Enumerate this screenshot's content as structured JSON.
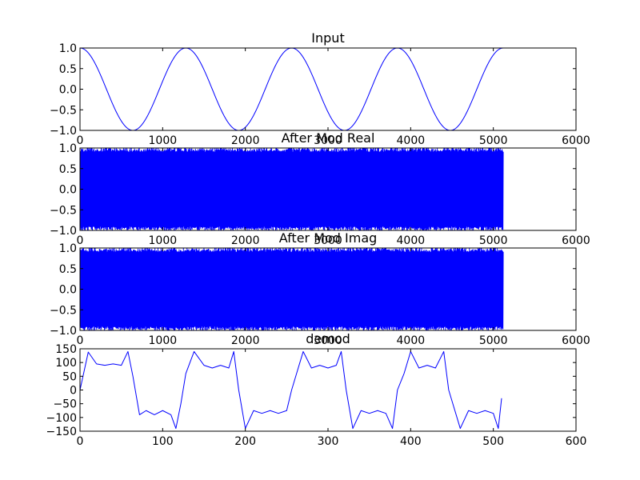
{
  "colors": {
    "line": "#0000ff",
    "axes": "#000000",
    "background": "#ffffff"
  },
  "chart_data": [
    {
      "type": "line",
      "title": "Input",
      "xlim": [
        0,
        6000
      ],
      "ylim": [
        -1.0,
        1.0
      ],
      "xticks": [
        0,
        1000,
        2000,
        3000,
        4000,
        5000,
        6000
      ],
      "yticks": [
        -1.0,
        -0.5,
        0.0,
        0.5,
        1.0
      ],
      "xtick_labels": [
        "0",
        "1000",
        "2000",
        "3000",
        "4000",
        "5000",
        "6000"
      ],
      "ytick_labels": [
        "−1.0",
        "−0.5",
        "0.0",
        "0.5",
        "1.0"
      ],
      "grid": false,
      "series": [
        {
          "x": [
            0,
            320,
            640,
            960,
            1280,
            1600,
            1920,
            2240,
            2560,
            2880,
            3200,
            3520,
            3840,
            4160,
            4480,
            4800,
            5120
          ],
          "y": [
            1.0,
            0.0,
            -1.0,
            0.0,
            1.0,
            0.0,
            -1.0,
            0.0,
            1.0,
            0.0,
            -1.0,
            0.0,
            1.0,
            0.0,
            -1.0,
            0.0,
            1.0
          ],
          "shape": "cosine",
          "period": 1280
        }
      ]
    },
    {
      "type": "line",
      "title": "After Mod Real",
      "xlim": [
        0,
        6000
      ],
      "ylim": [
        -1.0,
        1.0
      ],
      "xticks": [
        0,
        1000,
        2000,
        3000,
        4000,
        5000,
        6000
      ],
      "yticks": [
        -1.0,
        -0.5,
        0.0,
        0.5,
        1.0
      ],
      "xtick_labels": [
        "0",
        "1000",
        "2000",
        "3000",
        "4000",
        "5000",
        "6000"
      ],
      "ytick_labels": [
        "−1.0",
        "−0.5",
        "0.0",
        "0.5",
        "1.0"
      ],
      "grid": false,
      "series": [
        {
          "x_range": [
            0,
            5120
          ],
          "y_range": [
            -1.0,
            1.0
          ],
          "shape": "dense-oscillation"
        }
      ]
    },
    {
      "type": "line",
      "title": "After Mod Imag",
      "xlim": [
        0,
        6000
      ],
      "ylim": [
        -1.0,
        1.0
      ],
      "xticks": [
        0,
        1000,
        2000,
        3000,
        4000,
        5000,
        6000
      ],
      "yticks": [
        -1.0,
        -0.5,
        0.0,
        0.5,
        1.0
      ],
      "xtick_labels": [
        "0",
        "1000",
        "2000",
        "3000",
        "4000",
        "5000",
        "6000"
      ],
      "ytick_labels": [
        "−1.0",
        "−0.5",
        "0.0",
        "0.5",
        "1.0"
      ],
      "grid": false,
      "series": [
        {
          "x_range": [
            0,
            5120
          ],
          "y_range": [
            -1.0,
            1.0
          ],
          "shape": "dense-oscillation"
        }
      ]
    },
    {
      "type": "line",
      "title": "demod",
      "xlim": [
        0,
        600
      ],
      "ylim": [
        -150,
        150
      ],
      "xticks": [
        0,
        100,
        200,
        300,
        400,
        500,
        600
      ],
      "yticks": [
        -150,
        -100,
        -50,
        0,
        50,
        100,
        150
      ],
      "xtick_labels": [
        "0",
        "100",
        "200",
        "300",
        "400",
        "500",
        "600"
      ],
      "ytick_labels": [
        "−150",
        "−100",
        "−50",
        "0",
        "50",
        "100",
        "150"
      ],
      "grid": false,
      "series": [
        {
          "x": [
            0,
            10,
            20,
            30,
            40,
            50,
            58,
            64,
            72,
            80,
            90,
            100,
            110,
            116,
            122,
            128,
            138,
            150,
            160,
            170,
            180,
            186,
            192,
            200,
            210,
            220,
            230,
            240,
            250,
            256,
            262,
            270,
            280,
            290,
            300,
            310,
            316,
            322,
            330,
            340,
            350,
            360,
            370,
            378,
            384,
            392,
            400,
            410,
            420,
            430,
            440,
            446,
            452,
            460,
            470,
            480,
            490,
            500,
            506,
            510
          ],
          "y": [
            0,
            138,
            95,
            90,
            95,
            90,
            140,
            50,
            -90,
            -75,
            -90,
            -75,
            -90,
            -140,
            -50,
            60,
            140,
            90,
            80,
            90,
            80,
            140,
            0,
            -140,
            -75,
            -85,
            -75,
            -85,
            -75,
            0,
            60,
            140,
            80,
            90,
            80,
            90,
            140,
            0,
            -140,
            -75,
            -85,
            -75,
            -85,
            -140,
            0,
            60,
            140,
            80,
            90,
            80,
            140,
            0,
            -60,
            -140,
            -75,
            -85,
            -75,
            -85,
            -140,
            -30
          ]
        }
      ]
    }
  ]
}
